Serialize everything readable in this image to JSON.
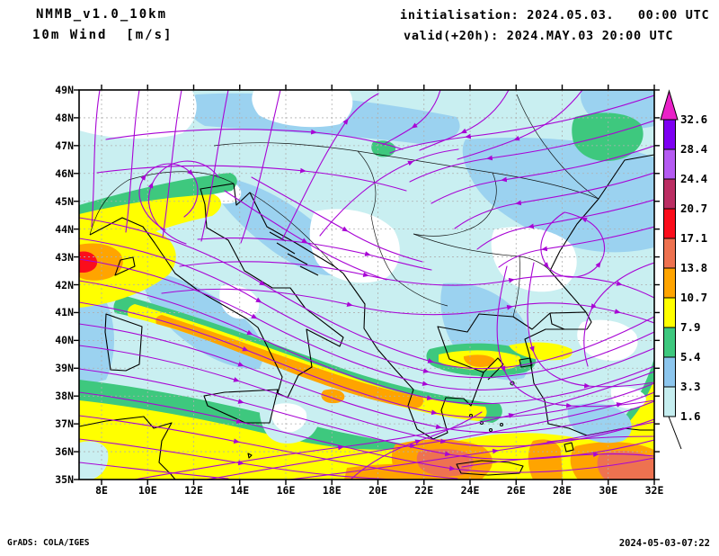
{
  "header": {
    "model": "NMMB_v1.0_10km",
    "field": "10m Wind  [m/s]",
    "init": "initialisation: 2024.05.03.   00:00 UTC",
    "valid": "valid(+20h): 2024.MAY.03 20:00 UTC"
  },
  "footer": {
    "left": "GrADS: COLA/IGES",
    "right": "2024-05-03-07:22"
  },
  "axes": {
    "lat_labels": [
      "49N",
      "48N",
      "47N",
      "46N",
      "45N",
      "44N",
      "43N",
      "42N",
      "41N",
      "40N",
      "39N",
      "38N",
      "37N",
      "36N",
      "35N"
    ],
    "lon_labels": [
      "8E",
      "10E",
      "12E",
      "14E",
      "16E",
      "18E",
      "20E",
      "22E",
      "24E",
      "26E",
      "28E",
      "30E",
      "32E"
    ]
  },
  "colorbar": {
    "tick_labels": [
      "32.6",
      "28.4",
      "24.4",
      "20.7",
      "17.1",
      "13.8",
      "10.7",
      "7.9",
      "5.4",
      "3.3",
      "1.6"
    ],
    "segment_colors": [
      "#7d00f2",
      "#b55bf2",
      "#bb2e63",
      "#fb0d1b",
      "#ee7250",
      "#ffa400",
      "#ffff00",
      "#3ec87e",
      "#8cc6ee",
      "#c5eef0"
    ],
    "arrow_color": "#ea21c8"
  },
  "colors": {
    "streamline": "#a805d5",
    "coast": "#000000",
    "grid": "#b0b0b0",
    "frame": "#000000",
    "sea_calm": "#c9eff1",
    "shade_blue": "#9bd2f0",
    "shade_green": "#3ec87e",
    "shade_yellow": "#ffff00",
    "shade_orange": "#ffa400",
    "shade_salmon": "#ee7250",
    "shade_red": "#fb0d1b"
  },
  "chart_data": {
    "type": "map",
    "title": "NMMB_v1.0_10km 10m Wind [m/s]",
    "variable": "10m wind speed streamlines and shaded magnitude",
    "units": "m/s",
    "region": {
      "lon_min": "8E",
      "lon_max": "32E",
      "lat_min": "35N",
      "lat_max": "49N"
    },
    "shade_levels": [
      1.6,
      3.3,
      5.4,
      7.9,
      10.7,
      13.8,
      17.1,
      20.7,
      24.4,
      28.4,
      32.6
    ],
    "init_time": "2024.05.03. 00:00 UTC",
    "valid_time": "2024.MAY.03 20:00 UTC",
    "forecast_hour": "+20h"
  }
}
